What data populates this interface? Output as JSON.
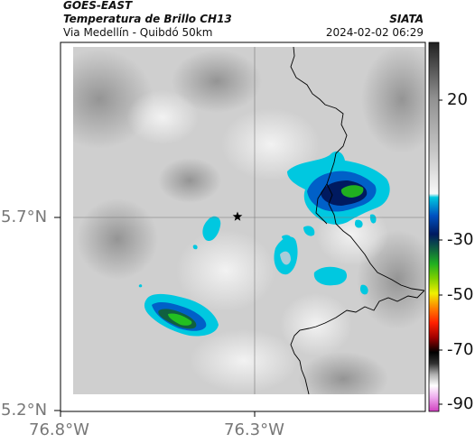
{
  "header": {
    "title_line1": "GOES-EAST",
    "title_line2": "Temperatura de Brillo CH13",
    "subtitle": "Via Medellín - Quibdó 50km",
    "brand": "SIATA",
    "timestamp": "2024-02-02 06:29"
  },
  "map": {
    "x_ticks": [
      "76.8°W",
      "76.3°W"
    ],
    "y_ticks": [
      "5.7°N",
      "5.2°N"
    ],
    "marker_icon": "star-icon"
  },
  "colorbar": {
    "tick_labels": [
      "20",
      "-30",
      "-50",
      "-70",
      "-90"
    ],
    "colors": {
      "warm_gray": "#888888",
      "cold_cyan": "#00c8e0",
      "blue": "#0050c0",
      "navy": "#001a60",
      "green": "#22c020",
      "yellow": "#f0f000",
      "orange": "#ff8000",
      "red": "#d01000",
      "black": "#000000",
      "magenta": "#d040c0"
    }
  }
}
